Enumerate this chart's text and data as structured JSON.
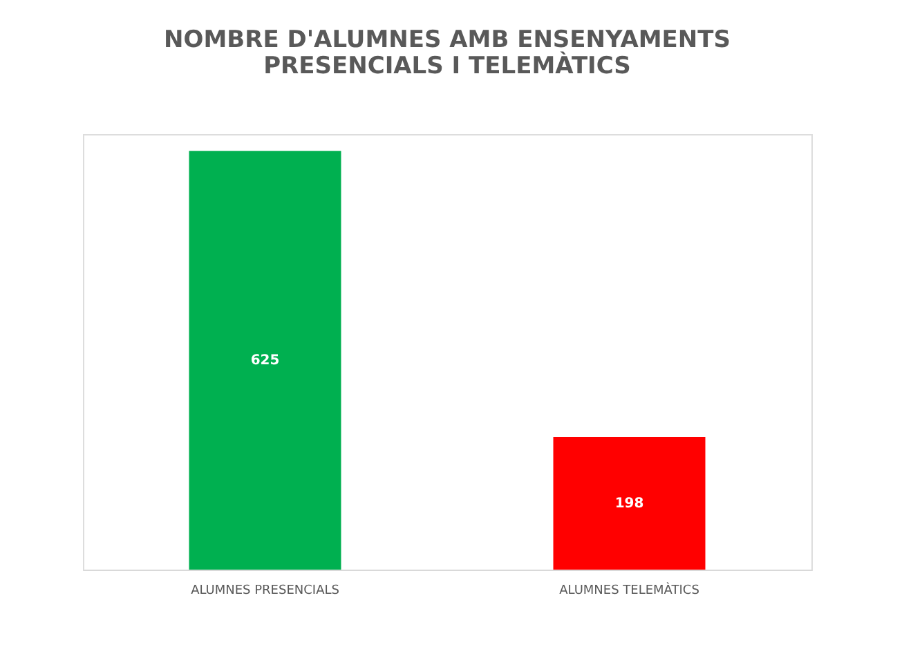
{
  "chart_data": {
    "type": "bar",
    "title": [
      "NOMBRE D'ALUMNES AMB ENSENYAMENTS",
      "PRESENCIALS I TELEMÀTICS"
    ],
    "categories": [
      "ALUMNES PRESENCIALS",
      "ALUMNES TELEMÀTICS"
    ],
    "values": [
      625,
      198
    ],
    "colors": [
      "#00b050",
      "#ff0000"
    ],
    "data_labels": true,
    "tick_labels": "x",
    "grid": false
  }
}
